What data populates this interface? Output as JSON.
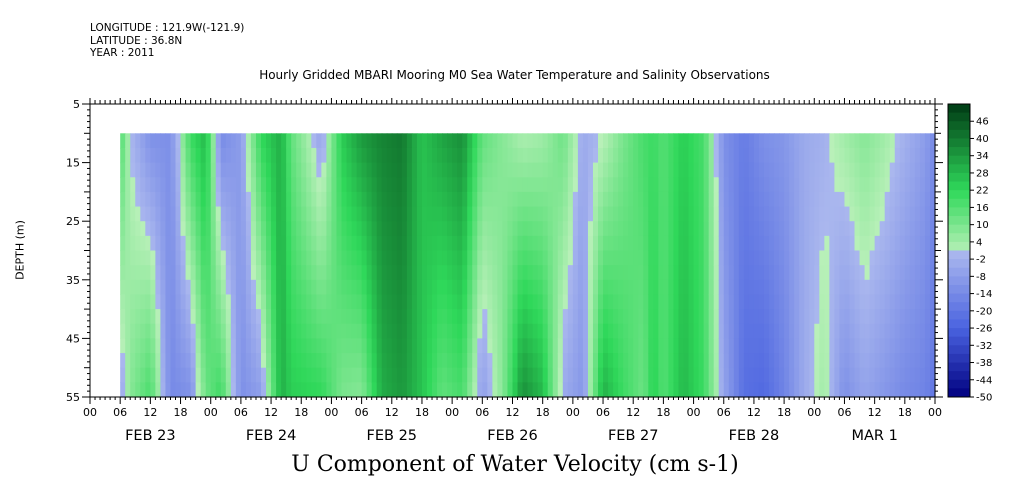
{
  "header": {
    "longitude": "LONGITUDE : 121.9W(-121.9)",
    "latitude": "LATITUDE : 36.8N",
    "year": "YEAR : 2011"
  },
  "colors": {
    "strong_negative": "#000080",
    "negative": "#4a63e0",
    "near_zero_neg": "#aab7ee",
    "near_zero_pos": "#b9f0b9",
    "positive": "#2fd85a",
    "strong_positive": "#003a14"
  },
  "chart_data": {
    "type": "heatmap",
    "title": "Hourly Gridded MBARI Mooring M0 Sea Water Temperature and Salinity Observations",
    "xlabel": "U Component of Water Velocity (cm s-1)",
    "ylabel": "DEPTH (m)",
    "y_axis": {
      "range": [
        5,
        55
      ],
      "inverted": true,
      "tick_labels": [
        "5",
        "15",
        "25",
        "35",
        "45",
        "55"
      ],
      "data_top_depth": 10,
      "data_bottom_depth": 55
    },
    "x_axis": {
      "hour_tick_labels": [
        "00",
        "06",
        "12",
        "18",
        "00",
        "06",
        "12",
        "18",
        "00",
        "06",
        "12",
        "18",
        "00",
        "06",
        "12",
        "18",
        "00",
        "06",
        "12",
        "18",
        "00",
        "06",
        "12",
        "18",
        "00",
        "06",
        "12",
        "18",
        "00"
      ],
      "day_labels": [
        "FEB 23",
        "FEB 24",
        "FEB 25",
        "FEB 26",
        "FEB 27",
        "FEB 28",
        "MAR  1"
      ],
      "range_hours": [
        0,
        168
      ],
      "data_start_hour": 6
    },
    "colorbar": {
      "labels": [
        "46",
        "40",
        "34",
        "28",
        "22",
        "16",
        "10",
        "4",
        "-2",
        "-8",
        "-14",
        "-20",
        "-26",
        "-32",
        "-38",
        "-44",
        "-50"
      ],
      "range": [
        -50,
        52
      ]
    },
    "series": [
      {
        "x": [
          6,
          8,
          12,
          16,
          20,
          23,
          26,
          30,
          34,
          38,
          40,
          46,
          50,
          54,
          58,
          62,
          66,
          70,
          74,
          78,
          82,
          86,
          90,
          94,
          98,
          102,
          106,
          110,
          112,
          114,
          118,
          122,
          126,
          130,
          134,
          138,
          142,
          146,
          150,
          154,
          158,
          162,
          166,
          168
        ],
        "u_upper": [
          18,
          0,
          -12,
          -12,
          20,
          28,
          -14,
          -8,
          22,
          30,
          14,
          -6,
          24,
          34,
          38,
          40,
          26,
          32,
          36,
          14,
          8,
          2,
          4,
          12,
          -4,
          0,
          10,
          18,
          20,
          16,
          24,
          18,
          -12,
          -18,
          -12,
          -10,
          -4,
          -2,
          4,
          8,
          4,
          -2,
          -8,
          -14
        ],
        "u_lower": [
          -6,
          8,
          18,
          -14,
          -12,
          12,
          20,
          -12,
          -8,
          30,
          24,
          22,
          10,
          8,
          30,
          34,
          26,
          14,
          18,
          -8,
          8,
          36,
          28,
          -4,
          -10,
          30,
          20,
          12,
          24,
          16,
          28,
          20,
          -6,
          -22,
          -24,
          -16,
          -4,
          4,
          -12,
          -6,
          -10,
          -14,
          -16,
          -20
        ]
      }
    ]
  }
}
